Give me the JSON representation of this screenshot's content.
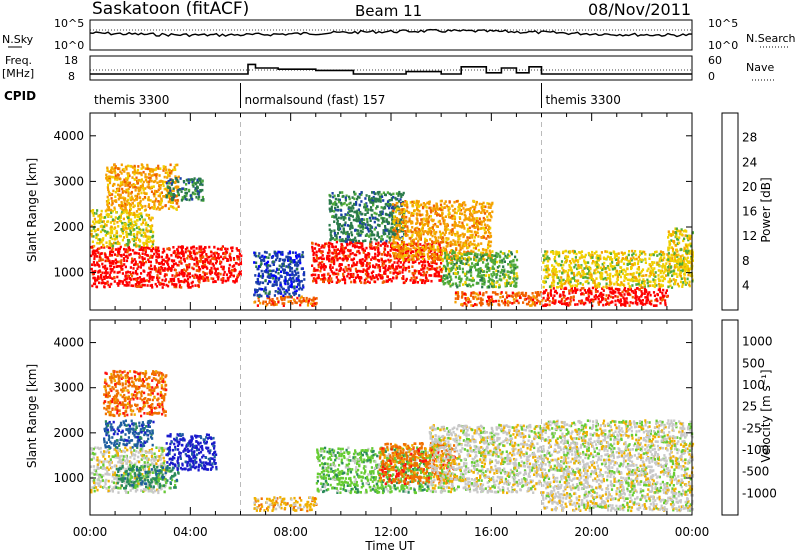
{
  "header": {
    "title": "Saskatoon (fitACF)",
    "beam": "Beam 11",
    "date": "08/Nov/2011"
  },
  "top_panels": {
    "nsky_label": "N.Sky",
    "nsearch_label": "N.Search",
    "freq_label_line1": "Freq.",
    "freq_label_line2": "[MHz]",
    "nave_label": "Nave",
    "cpid_label": "CPID",
    "nsky_ticks": [
      "10^5",
      "10^0"
    ],
    "nsearch_ticks": [
      "10^5",
      "10^0"
    ],
    "freq_ticks": [
      "18",
      "8"
    ],
    "nave_ticks": [
      "60",
      "0"
    ]
  },
  "cpid_segments": [
    {
      "label": "themis 3300",
      "start_h": 0,
      "end_h": 6
    },
    {
      "label": "normalsound (fast) 157",
      "start_h": 6,
      "end_h": 18
    },
    {
      "label": "themis 3300",
      "start_h": 18,
      "end_h": 24
    }
  ],
  "x_axis": {
    "title": "Time UT",
    "ticks": [
      "00:00",
      "04:00",
      "08:00",
      "12:00",
      "16:00",
      "20:00",
      "00:00"
    ]
  },
  "power_panel": {
    "ylabel": "Slant Range [km]",
    "yticks": [
      "1000",
      "2000",
      "3000",
      "4000"
    ],
    "colorbar_label": "Power [dB]",
    "colorbar_ticks": [
      "4",
      "8",
      "12",
      "16",
      "20",
      "24",
      "28"
    ],
    "colors": [
      "#0000ff",
      "#1a3fa8",
      "#2a7a4a",
      "#4faa3a",
      "#f0d000",
      "#f5a000",
      "#f06000",
      "#ff0000"
    ]
  },
  "velocity_panel": {
    "ylabel": "Slant Range [km]",
    "yticks": [
      "1000",
      "2000",
      "3000",
      "4000"
    ],
    "colorbar_label": "Velocity [m s⁻¹]",
    "colorbar_ticks": [
      "1000",
      "500",
      "100",
      "25",
      "-25",
      "-100",
      "-500",
      "-1000"
    ],
    "colors": [
      "#1a1acc",
      "#1f5fa0",
      "#2a8a5a",
      "#66cc33",
      "#c8c8c8",
      "#f0b000",
      "#f07000",
      "#ff1010",
      "#ff0000"
    ]
  },
  "chart_data": {
    "type": "heatmap",
    "x_range_h": [
      0,
      24
    ],
    "y_range_km": [
      180,
      4500
    ],
    "frequency_mhz": [
      {
        "start_h": 0,
        "end_h": 6.3,
        "value": 10.5
      },
      {
        "start_h": 6.3,
        "end_h": 6.6,
        "value": 14.5
      },
      {
        "start_h": 6.6,
        "end_h": 7.5,
        "value": 13.0
      },
      {
        "start_h": 7.5,
        "end_h": 9.0,
        "value": 12.5
      },
      {
        "start_h": 9.0,
        "end_h": 10.5,
        "value": 12.0
      },
      {
        "start_h": 10.5,
        "end_h": 12.6,
        "value": 10.5
      },
      {
        "start_h": 12.6,
        "end_h": 14.0,
        "value": 11.5
      },
      {
        "start_h": 14.0,
        "end_h": 14.8,
        "value": 10.5
      },
      {
        "start_h": 14.8,
        "end_h": 15.8,
        "value": 13.5
      },
      {
        "start_h": 15.8,
        "end_h": 16.4,
        "value": 11.0
      },
      {
        "start_h": 16.4,
        "end_h": 17.0,
        "value": 13.0
      },
      {
        "start_h": 17.0,
        "end_h": 17.5,
        "value": 11.0
      },
      {
        "start_h": 17.5,
        "end_h": 18.0,
        "value": 13.5
      },
      {
        "start_h": 18.0,
        "end_h": 24,
        "value": 10.5
      }
    ],
    "power_regions": [
      {
        "t0": 0.0,
        "t1": 4.3,
        "r0": 700,
        "r1": 1600,
        "level": 7
      },
      {
        "t0": 0.0,
        "t1": 2.5,
        "r0": 1600,
        "r1": 2400,
        "level": 4
      },
      {
        "t0": 0.6,
        "t1": 3.5,
        "r0": 2400,
        "r1": 3400,
        "level": 5
      },
      {
        "t0": 3.0,
        "t1": 4.5,
        "r0": 2600,
        "r1": 3100,
        "level": 2
      },
      {
        "t0": 4.3,
        "t1": 6.0,
        "r0": 800,
        "r1": 1600,
        "level": 7
      },
      {
        "t0": 6.5,
        "t1": 9.0,
        "r0": 300,
        "r1": 500,
        "level": 6
      },
      {
        "t0": 6.5,
        "t1": 8.5,
        "r0": 500,
        "r1": 1500,
        "level": 1
      },
      {
        "t0": 8.8,
        "t1": 14.0,
        "r0": 800,
        "r1": 1700,
        "level": 7
      },
      {
        "t0": 9.5,
        "t1": 12.5,
        "r0": 1700,
        "r1": 2800,
        "level": 2
      },
      {
        "t0": 12.0,
        "t1": 16.0,
        "r0": 1300,
        "r1": 2600,
        "level": 5
      },
      {
        "t0": 14.0,
        "t1": 17.0,
        "r0": 700,
        "r1": 1500,
        "level": 3
      },
      {
        "t0": 14.5,
        "t1": 18.0,
        "r0": 300,
        "r1": 600,
        "level": 6
      },
      {
        "t0": 18.0,
        "t1": 23.0,
        "r0": 300,
        "r1": 700,
        "level": 7
      },
      {
        "t0": 18.0,
        "t1": 24.0,
        "r0": 700,
        "r1": 1500,
        "level": 4
      },
      {
        "t0": 23.0,
        "t1": 24.0,
        "r0": 1000,
        "r1": 2000,
        "level": 4
      }
    ],
    "velocity_regions": [
      {
        "t0": 0.0,
        "t1": 3.0,
        "r0": 700,
        "r1": 1700,
        "level": 4
      },
      {
        "t0": 1.0,
        "t1": 3.5,
        "r0": 800,
        "r1": 1300,
        "level": 2
      },
      {
        "t0": 3.0,
        "t1": 5.0,
        "r0": 1200,
        "r1": 2000,
        "level": 0
      },
      {
        "t0": 0.5,
        "t1": 3.0,
        "r0": 2400,
        "r1": 3400,
        "level": 6
      },
      {
        "t0": 0.5,
        "t1": 2.5,
        "r0": 1700,
        "r1": 2300,
        "level": 1
      },
      {
        "t0": 6.5,
        "t1": 9.0,
        "r0": 300,
        "r1": 600,
        "level": 5
      },
      {
        "t0": 9.0,
        "t1": 13.5,
        "r0": 700,
        "r1": 1700,
        "level": 3
      },
      {
        "t0": 11.5,
        "t1": 14.5,
        "r0": 900,
        "r1": 1800,
        "level": 6
      },
      {
        "t0": 13.5,
        "t1": 18.0,
        "r0": 700,
        "r1": 2200,
        "level": 4
      },
      {
        "t0": 18.0,
        "t1": 24.0,
        "r0": 300,
        "r1": 1600,
        "level": 4
      },
      {
        "t0": 18.0,
        "t1": 24.0,
        "r0": 1600,
        "r1": 2300,
        "level": 4
      }
    ]
  }
}
